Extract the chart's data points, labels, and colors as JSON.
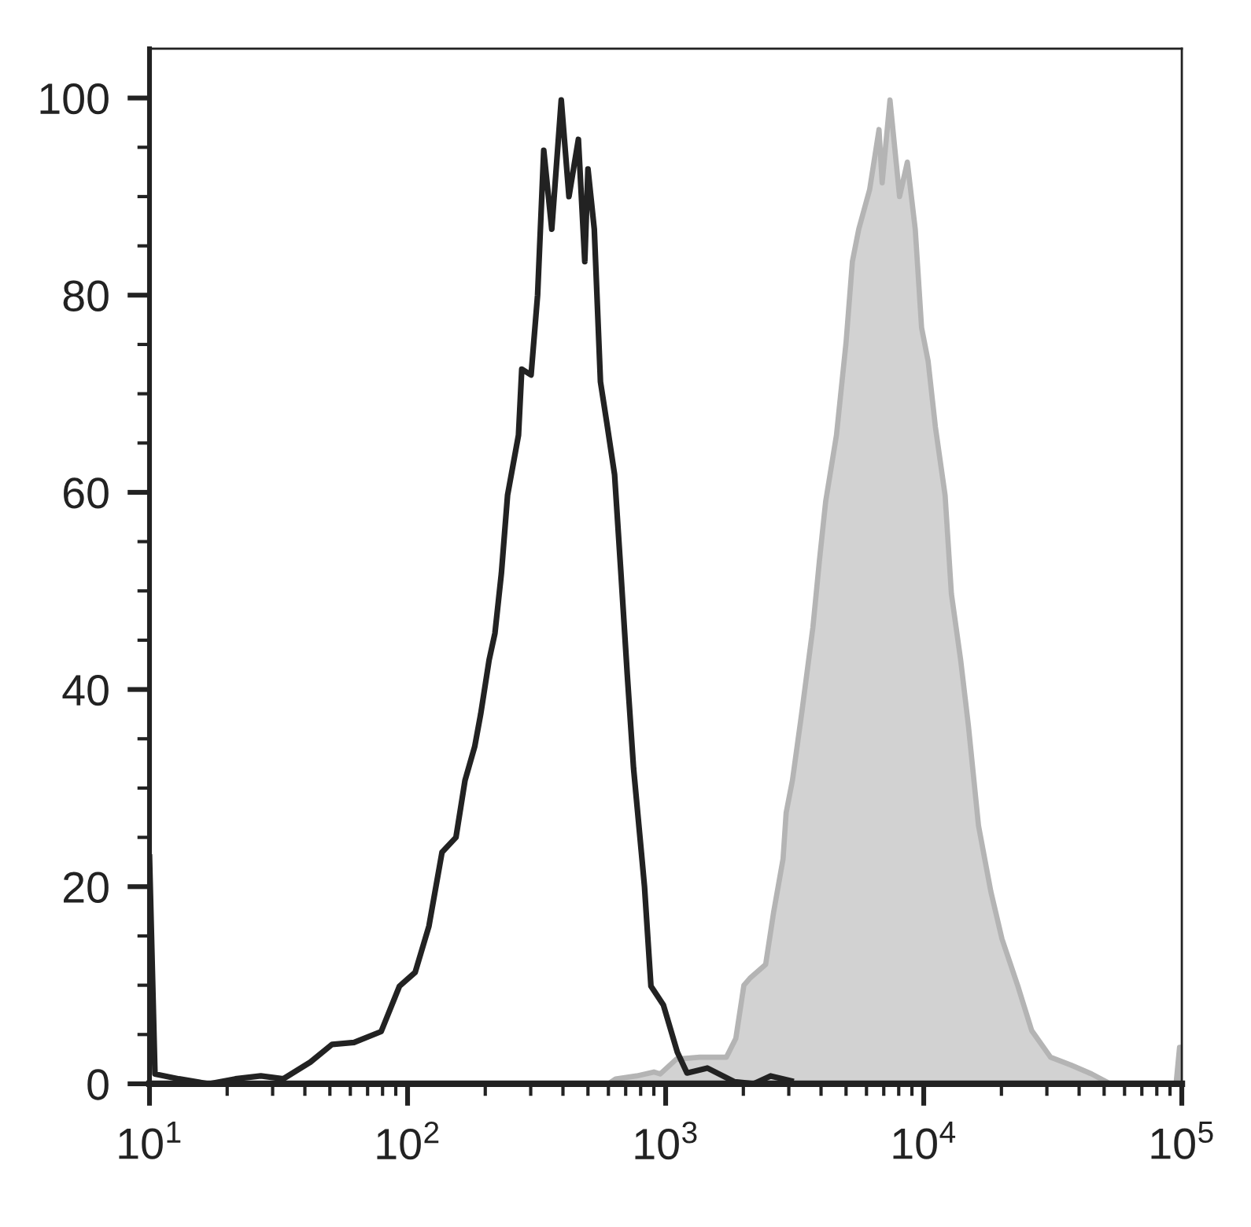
{
  "chart_data": {
    "type": "line",
    "log": "x",
    "xlim": [
      10,
      100000
    ],
    "ylim": [
      0,
      105
    ],
    "xticks": [
      {
        "value": 10,
        "label": "10$^{1}$"
      },
      {
        "value": 20,
        "label": null
      },
      {
        "value": 30,
        "label": null
      },
      {
        "value": 40,
        "label": null
      },
      {
        "value": 50,
        "label": null
      },
      {
        "value": 60,
        "label": null
      },
      {
        "value": 70,
        "label": null
      },
      {
        "value": 80,
        "label": null
      },
      {
        "value": 90,
        "label": null
      },
      {
        "value": 100,
        "label": "10$^{2}$"
      },
      {
        "value": 200,
        "label": null
      },
      {
        "value": 300,
        "label": null
      },
      {
        "value": 400,
        "label": null
      },
      {
        "value": 500,
        "label": null
      },
      {
        "value": 600,
        "label": null
      },
      {
        "value": 700,
        "label": null
      },
      {
        "value": 800,
        "label": null
      },
      {
        "value": 900,
        "label": null
      },
      {
        "value": 1000,
        "label": "10$^{3}$"
      },
      {
        "value": 2000,
        "label": null
      },
      {
        "value": 3000,
        "label": null
      },
      {
        "value": 4000,
        "label": null
      },
      {
        "value": 5000,
        "label": null
      },
      {
        "value": 6000,
        "label": null
      },
      {
        "value": 7000,
        "label": null
      },
      {
        "value": 8000,
        "label": null
      },
      {
        "value": 9000,
        "label": null
      },
      {
        "value": 10000,
        "label": "10$^{4}$"
      },
      {
        "value": 20000,
        "label": null
      },
      {
        "value": 30000,
        "label": null
      },
      {
        "value": 40000,
        "label": null
      },
      {
        "value": 50000,
        "label": null
      },
      {
        "value": 60000,
        "label": null
      },
      {
        "value": 70000,
        "label": null
      },
      {
        "value": 80000,
        "label": null
      },
      {
        "value": 90000,
        "label": null
      },
      {
        "value": 100000,
        "label": "10$^{5}$"
      }
    ],
    "yticks": [
      0,
      {
        "value": 5,
        "label": null
      },
      {
        "value": 10,
        "label": null
      },
      {
        "value": 15,
        "label": null
      },
      20,
      {
        "value": 25,
        "label": null
      },
      {
        "value": 30,
        "label": null
      },
      {
        "value": 35,
        "label": null
      },
      40,
      {
        "value": 45,
        "label": null
      },
      {
        "value": 50,
        "label": null
      },
      {
        "value": 55,
        "label": null
      },
      60,
      {
        "value": 65,
        "label": null
      },
      {
        "value": 70,
        "label": null
      },
      {
        "value": 75,
        "label": null
      },
      80,
      {
        "value": 85,
        "label": null
      },
      {
        "value": 90,
        "label": null
      },
      {
        "value": 95,
        "label": null
      },
      100
    ],
    "series": [
      {
        "type": "area",
        "color": "#b4b4b4",
        "x": [
          10,
          600,
          640,
          772,
          900,
          953,
          1100,
          1355,
          1720,
          1870,
          2010,
          2120,
          2440,
          2620,
          2850,
          2930,
          3100,
          3370,
          3720,
          3940,
          4170,
          4590,
          5000,
          5290,
          5600,
          6170,
          6710,
          6900,
          7400,
          8060,
          8640,
          9270,
          9810,
          10400,
          11100,
          12100,
          12800,
          13900,
          14900,
          16300,
          18200,
          20100,
          23100,
          26200,
          31000,
          37200,
          44700,
          52800,
          95000,
          98000,
          100000
        ],
        "values": [
          0,
          0,
          0.5,
          0.8,
          1.2,
          1,
          2.5,
          2.7,
          2.7,
          4.6,
          10,
          10.7,
          12.1,
          17.4,
          22.8,
          27.5,
          30.8,
          37.7,
          46.3,
          53,
          59.1,
          65.8,
          75.2,
          83.4,
          86.7,
          90.7,
          96.8,
          91.4,
          99.8,
          90,
          93.5,
          86.7,
          76.7,
          73.3,
          66.6,
          59.7,
          49.7,
          43,
          36.3,
          26.2,
          19.5,
          14.7,
          10,
          5.4,
          2.7,
          1.9,
          1,
          0,
          0,
          3.7,
          3.7
        ]
      },
      {
        "color": "#222222",
        "x": [
          10,
          10.5,
          13,
          17,
          21.5,
          27,
          33,
          42,
          51,
          62,
          79,
          93,
          107,
          121,
          136,
          154,
          167,
          182,
          192,
          207,
          218,
          231,
          244,
          269,
          277,
          301,
          319,
          337,
          362,
          394,
          422,
          459,
          486,
          500,
          529,
          559,
          592,
          634,
          671,
          710,
          751,
          805,
          828,
          877,
          980,
          1110,
          1210,
          1450,
          1850,
          2190,
          2550,
          3060
        ],
        "values": [
          23,
          1,
          0.5,
          0,
          0.5,
          0.8,
          0.5,
          2.2,
          4,
          4.2,
          5.3,
          9.9,
          11.3,
          16,
          23.5,
          25,
          30.8,
          34.2,
          37.5,
          43,
          45.7,
          51.8,
          59.7,
          65.8,
          72.5,
          71.9,
          80,
          94.7,
          86.7,
          99.8,
          90,
          95.8,
          83.4,
          92.8,
          86.7,
          71.2,
          67,
          61.8,
          51.8,
          41.5,
          32,
          23.5,
          20,
          9.9,
          8,
          3.2,
          1.1,
          1.6,
          0.2,
          0,
          0.8,
          0.3
        ]
      }
    ]
  }
}
